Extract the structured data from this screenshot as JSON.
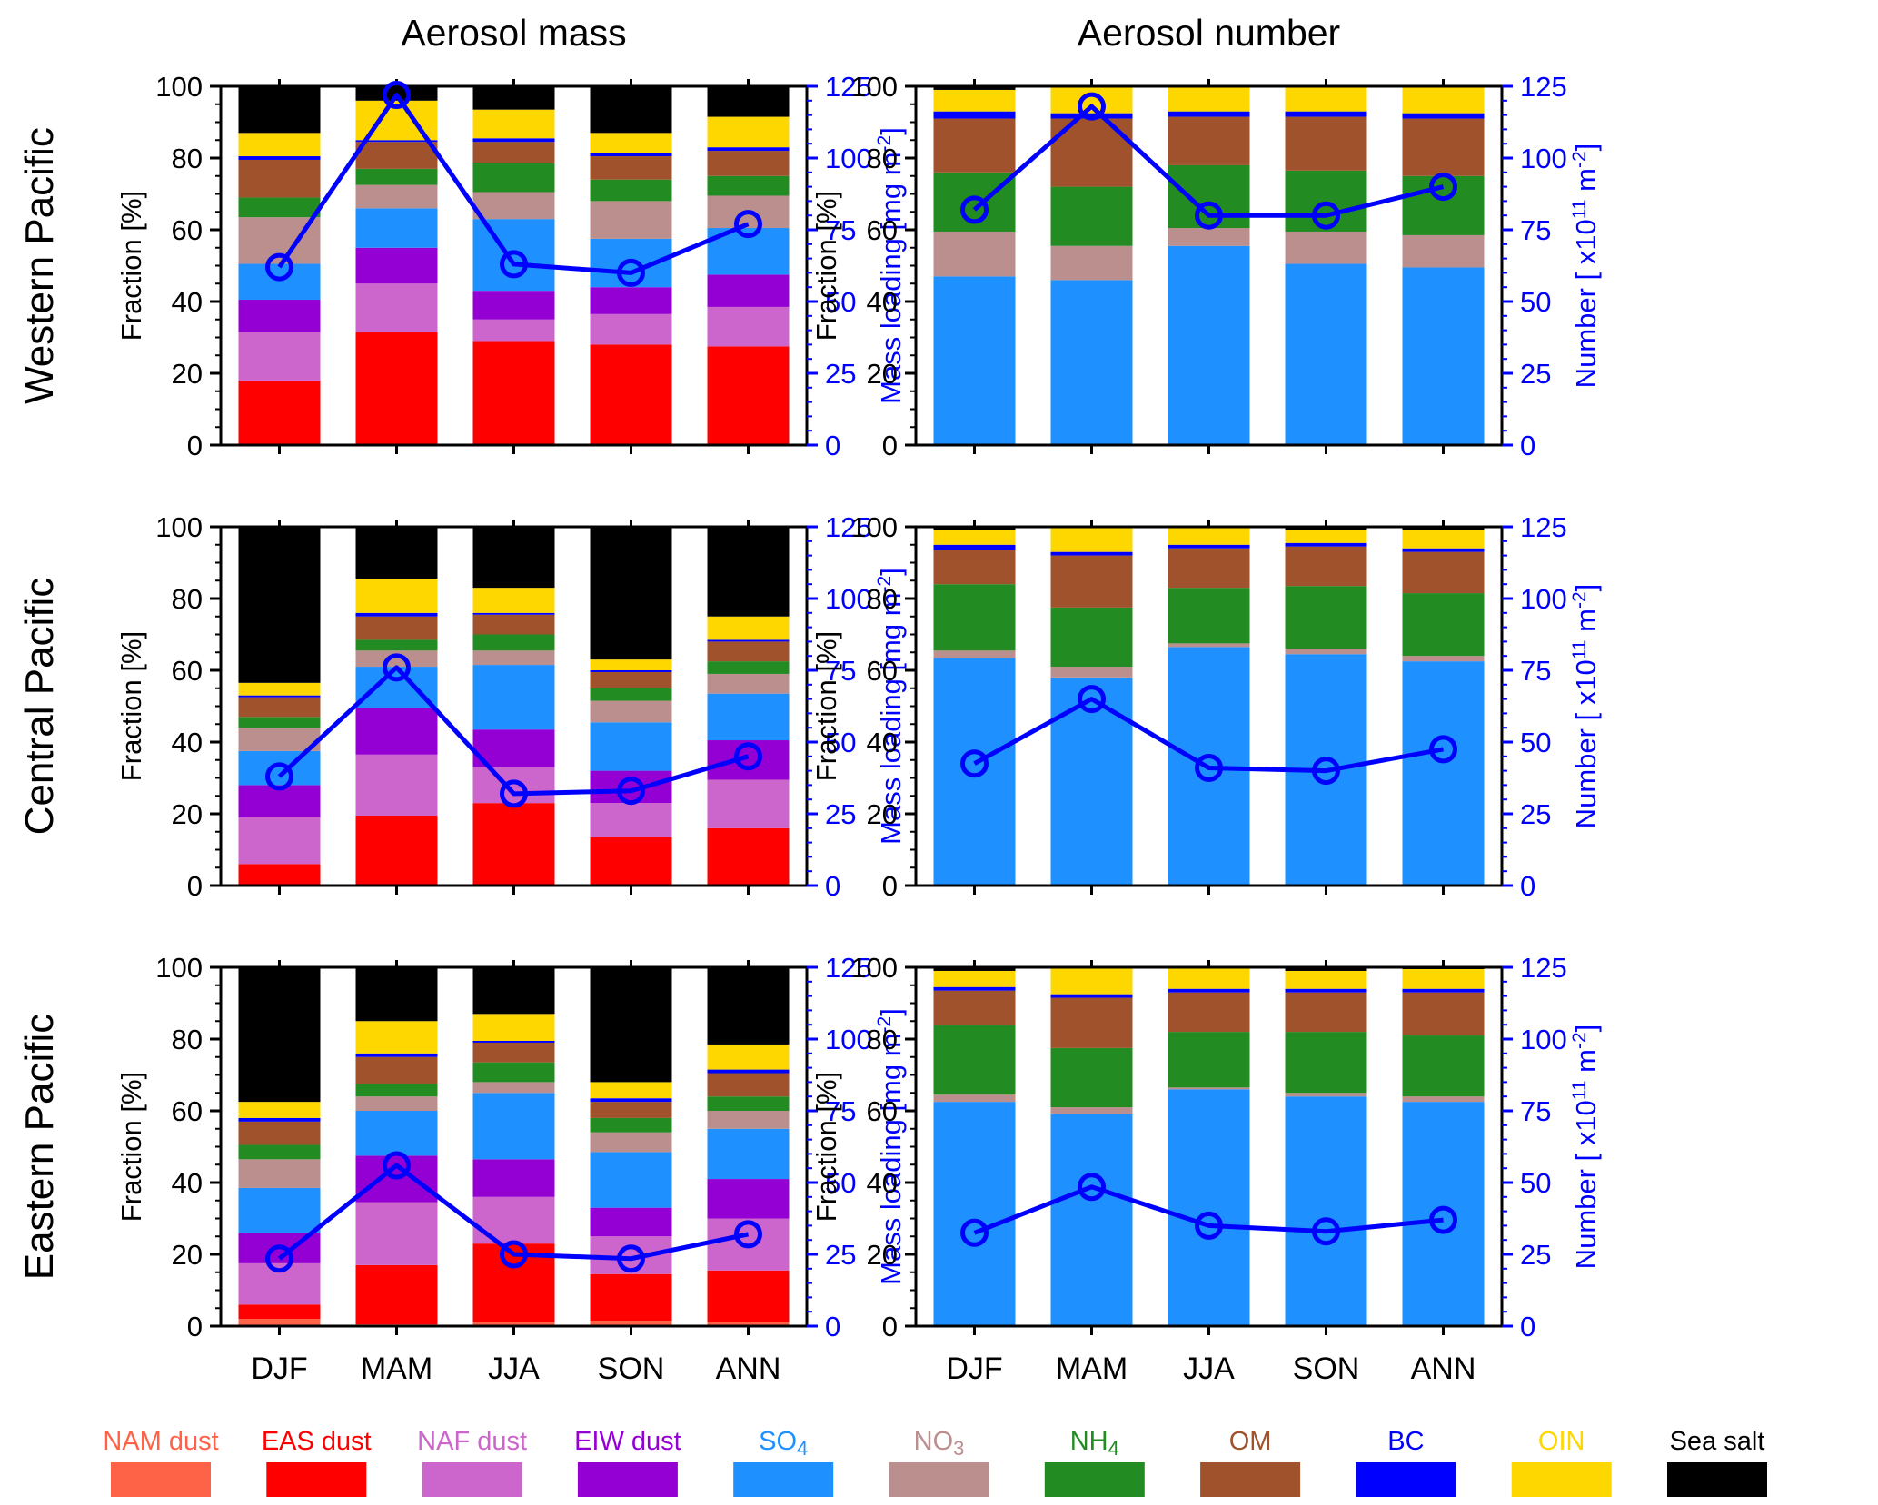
{
  "column_titles": [
    "Aerosol mass",
    "Aerosol number"
  ],
  "row_titles": [
    "Western Pacific",
    "Central Pacific",
    "Eastern Pacific"
  ],
  "categories": [
    "DJF",
    "MAM",
    "JJA",
    "SON",
    "ANN"
  ],
  "left_axis": {
    "label": "Fraction [%]",
    "ylim": [
      0,
      100
    ],
    "ticks": [
      "0",
      "20",
      "40",
      "60",
      "80",
      "100"
    ]
  },
  "right_axis_ticks": [
    "0",
    "25",
    "50",
    "75",
    "100",
    "125"
  ],
  "mass_axis_label": {
    "prefix": "Mass loading [mg m",
    "sup": "-2",
    "suffix": "]"
  },
  "number_axis_label": {
    "prefix": "Number [ x10",
    "sup1": "11",
    "middle": " m",
    "sup2": "-2",
    "suffix": "]"
  },
  "legend": [
    {
      "label": "NAM dust",
      "color": "#ff6347"
    },
    {
      "label": "EAS dust",
      "color": "#ff0000"
    },
    {
      "label": "NAF dust",
      "color": "#cc66cc"
    },
    {
      "label": "EIW dust",
      "color": "#9400d3"
    },
    {
      "label": "SO",
      "sub": "4",
      "color": "#1e90ff"
    },
    {
      "label": "NO",
      "sub": "3",
      "color": "#bc8f8f"
    },
    {
      "label": "NH",
      "sub": "4",
      "color": "#228b22"
    },
    {
      "label": "OM",
      "color": "#a0522d"
    },
    {
      "label": "BC",
      "color": "#0000ff"
    },
    {
      "label": "OIN",
      "color": "#ffd700"
    },
    {
      "label": "Sea salt",
      "color": "#000000"
    }
  ],
  "chart_data": [
    {
      "type": "bar",
      "stacked": true,
      "region": "Western Pacific",
      "quantity": "mass",
      "categories": [
        "DJF",
        "MAM",
        "JJA",
        "SON",
        "ANN"
      ],
      "ylim": [
        0,
        100
      ],
      "y2lim": [
        0,
        125
      ],
      "ylabel": "Fraction [%]",
      "y2label": "Mass loading [mg m-2]",
      "series": [
        {
          "name": "NAM dust",
          "values": [
            0,
            0,
            0,
            0,
            0
          ]
        },
        {
          "name": "EAS dust",
          "values": [
            18,
            31.5,
            29,
            28,
            27.5
          ]
        },
        {
          "name": "NAF dust",
          "values": [
            13.5,
            13.5,
            6,
            8.5,
            11
          ]
        },
        {
          "name": "EIW dust",
          "values": [
            9,
            10,
            8,
            7.5,
            9
          ]
        },
        {
          "name": "SO4",
          "values": [
            10,
            11,
            20,
            13.5,
            13
          ]
        },
        {
          "name": "NO3",
          "values": [
            13,
            6.5,
            7.5,
            10.5,
            9
          ]
        },
        {
          "name": "NH4",
          "values": [
            5.5,
            4.5,
            8,
            6,
            5.5
          ]
        },
        {
          "name": "OM",
          "values": [
            10.5,
            7.5,
            6,
            6.5,
            7
          ]
        },
        {
          "name": "BC",
          "values": [
            1,
            0.5,
            1,
            1,
            1
          ]
        },
        {
          "name": "OIN",
          "values": [
            6.5,
            11,
            8,
            5.5,
            8.5
          ]
        },
        {
          "name": "Sea salt",
          "values": [
            13,
            4,
            6.5,
            13,
            8.5
          ]
        }
      ],
      "line": {
        "name": "Mass loading",
        "values": [
          62,
          122,
          63,
          60,
          77
        ]
      }
    },
    {
      "type": "bar",
      "stacked": true,
      "region": "Western Pacific",
      "quantity": "number",
      "categories": [
        "DJF",
        "MAM",
        "JJA",
        "SON",
        "ANN"
      ],
      "ylim": [
        0,
        100
      ],
      "y2lim": [
        0,
        125
      ],
      "ylabel": "Fraction [%]",
      "y2label": "Number [x10^11 m-2]",
      "series": [
        {
          "name": "NAM dust",
          "values": [
            0,
            0,
            0,
            0,
            0
          ]
        },
        {
          "name": "EAS dust",
          "values": [
            0,
            0,
            0,
            0,
            0
          ]
        },
        {
          "name": "NAF dust",
          "values": [
            0,
            0,
            0,
            0,
            0
          ]
        },
        {
          "name": "EIW dust",
          "values": [
            0,
            0,
            0,
            0,
            0
          ]
        },
        {
          "name": "SO4",
          "values": [
            47,
            46,
            55.5,
            50.5,
            49.5
          ]
        },
        {
          "name": "NO3",
          "values": [
            12.5,
            9.5,
            5,
            9,
            9
          ]
        },
        {
          "name": "NH4",
          "values": [
            16.5,
            16.5,
            17.5,
            17,
            16.5
          ]
        },
        {
          "name": "OM",
          "values": [
            15,
            19,
            13.5,
            15,
            16
          ]
        },
        {
          "name": "BC",
          "values": [
            2,
            1.5,
            1.5,
            1.5,
            1.5
          ]
        },
        {
          "name": "OIN",
          "values": [
            6,
            7.5,
            7,
            7,
            7.5
          ]
        },
        {
          "name": "Sea salt",
          "values": [
            1,
            0,
            0,
            0,
            0
          ]
        }
      ],
      "line": {
        "name": "Number",
        "values": [
          82,
          118,
          80,
          80,
          90
        ]
      }
    },
    {
      "type": "bar",
      "stacked": true,
      "region": "Central Pacific",
      "quantity": "mass",
      "categories": [
        "DJF",
        "MAM",
        "JJA",
        "SON",
        "ANN"
      ],
      "ylim": [
        0,
        100
      ],
      "y2lim": [
        0,
        125
      ],
      "ylabel": "Fraction [%]",
      "y2label": "Mass loading [mg m-2]",
      "series": [
        {
          "name": "NAM dust",
          "values": [
            0,
            0,
            0,
            0,
            0
          ]
        },
        {
          "name": "EAS dust",
          "values": [
            6,
            19.5,
            23,
            13.5,
            16
          ]
        },
        {
          "name": "NAF dust",
          "values": [
            13,
            17,
            10,
            9.5,
            13.5
          ]
        },
        {
          "name": "EIW dust",
          "values": [
            9,
            13,
            10.5,
            9,
            11
          ]
        },
        {
          "name": "SO4",
          "values": [
            9.5,
            11.5,
            18,
            13.5,
            13
          ]
        },
        {
          "name": "NO3",
          "values": [
            6.5,
            4.5,
            4,
            6,
            5.5
          ]
        },
        {
          "name": "NH4",
          "values": [
            3,
            3,
            4.5,
            3.5,
            3.5
          ]
        },
        {
          "name": "OM",
          "values": [
            5.5,
            6.5,
            5.5,
            4.5,
            5.5
          ]
        },
        {
          "name": "BC",
          "values": [
            0.5,
            1,
            0.5,
            0.5,
            0.5
          ]
        },
        {
          "name": "OIN",
          "values": [
            3.5,
            9.5,
            7,
            3,
            6.5
          ]
        },
        {
          "name": "Sea salt",
          "values": [
            43.5,
            14.5,
            17,
            37,
            25
          ]
        }
      ],
      "line": {
        "name": "Mass loading",
        "values": [
          38,
          76,
          32,
          33,
          45
        ]
      }
    },
    {
      "type": "bar",
      "stacked": true,
      "region": "Central Pacific",
      "quantity": "number",
      "categories": [
        "DJF",
        "MAM",
        "JJA",
        "SON",
        "ANN"
      ],
      "ylim": [
        0,
        100
      ],
      "y2lim": [
        0,
        125
      ],
      "ylabel": "Fraction [%]",
      "y2label": "Number [x10^11 m-2]",
      "series": [
        {
          "name": "NAM dust",
          "values": [
            0,
            0,
            0,
            0,
            0
          ]
        },
        {
          "name": "EAS dust",
          "values": [
            0,
            0,
            0,
            0,
            0
          ]
        },
        {
          "name": "NAF dust",
          "values": [
            0,
            0,
            0,
            0,
            0
          ]
        },
        {
          "name": "EIW dust",
          "values": [
            0,
            0,
            0,
            0,
            0
          ]
        },
        {
          "name": "SO4",
          "values": [
            63.5,
            58,
            66.5,
            64.5,
            62.5
          ]
        },
        {
          "name": "NO3",
          "values": [
            2,
            3,
            1,
            1.5,
            1.5
          ]
        },
        {
          "name": "NH4",
          "values": [
            18.5,
            16.5,
            15.5,
            17.5,
            17.5
          ]
        },
        {
          "name": "OM",
          "values": [
            9.5,
            14.5,
            11,
            11,
            11.5
          ]
        },
        {
          "name": "BC",
          "values": [
            1.5,
            1,
            1,
            1,
            1
          ]
        },
        {
          "name": "OIN",
          "values": [
            4,
            7,
            5,
            3.5,
            5
          ]
        },
        {
          "name": "Sea salt",
          "values": [
            1,
            0,
            0,
            1,
            1
          ]
        }
      ],
      "line": {
        "name": "Number",
        "values": [
          42.5,
          65,
          41,
          40,
          47.5
        ]
      }
    },
    {
      "type": "bar",
      "stacked": true,
      "region": "Eastern Pacific",
      "quantity": "mass",
      "categories": [
        "DJF",
        "MAM",
        "JJA",
        "SON",
        "ANN"
      ],
      "ylim": [
        0,
        100
      ],
      "y2lim": [
        0,
        125
      ],
      "ylabel": "Fraction [%]",
      "y2label": "Mass loading [mg m-2]",
      "series": [
        {
          "name": "NAM dust",
          "values": [
            2,
            0.5,
            1,
            1.5,
            1
          ]
        },
        {
          "name": "EAS dust",
          "values": [
            4,
            16.5,
            22,
            13,
            14.5
          ]
        },
        {
          "name": "NAF dust",
          "values": [
            11.5,
            17.5,
            13,
            10.5,
            14.5
          ]
        },
        {
          "name": "EIW dust",
          "values": [
            8.5,
            13,
            10.5,
            8,
            11
          ]
        },
        {
          "name": "SO4",
          "values": [
            12.5,
            12.5,
            18.5,
            15.5,
            14
          ]
        },
        {
          "name": "NO3",
          "values": [
            8,
            4,
            3,
            5.5,
            5
          ]
        },
        {
          "name": "NH4",
          "values": [
            4,
            3.5,
            5.5,
            4,
            4
          ]
        },
        {
          "name": "OM",
          "values": [
            6.5,
            7.5,
            5.5,
            4.5,
            6.5
          ]
        },
        {
          "name": "BC",
          "values": [
            1,
            1,
            0.5,
            1,
            1
          ]
        },
        {
          "name": "OIN",
          "values": [
            4.5,
            9,
            7.5,
            4.5,
            7
          ]
        },
        {
          "name": "Sea salt",
          "values": [
            37.5,
            15,
            13,
            32,
            21.5
          ]
        }
      ],
      "line": {
        "name": "Mass loading",
        "values": [
          23.5,
          56,
          25,
          23.5,
          32
        ]
      }
    },
    {
      "type": "bar",
      "stacked": true,
      "region": "Eastern Pacific",
      "quantity": "number",
      "categories": [
        "DJF",
        "MAM",
        "JJA",
        "SON",
        "ANN"
      ],
      "ylim": [
        0,
        100
      ],
      "y2lim": [
        0,
        125
      ],
      "ylabel": "Fraction [%]",
      "y2label": "Number [x10^11 m-2]",
      "series": [
        {
          "name": "NAM dust",
          "values": [
            0,
            0,
            0,
            0,
            0
          ]
        },
        {
          "name": "EAS dust",
          "values": [
            0,
            0,
            0,
            0,
            0
          ]
        },
        {
          "name": "NAF dust",
          "values": [
            0,
            0,
            0,
            0,
            0
          ]
        },
        {
          "name": "EIW dust",
          "values": [
            0,
            0,
            0,
            0,
            0
          ]
        },
        {
          "name": "SO4",
          "values": [
            62.5,
            59,
            66,
            64,
            62.5
          ]
        },
        {
          "name": "NO3",
          "values": [
            2,
            2,
            0.5,
            1,
            1.5
          ]
        },
        {
          "name": "NH4",
          "values": [
            19.5,
            16.5,
            15.5,
            17,
            17
          ]
        },
        {
          "name": "OM",
          "values": [
            9.5,
            14,
            11,
            11,
            12
          ]
        },
        {
          "name": "BC",
          "values": [
            1,
            1,
            1,
            1,
            1
          ]
        },
        {
          "name": "OIN",
          "values": [
            4.5,
            7.5,
            6,
            5,
            5.5
          ]
        },
        {
          "name": "Sea salt",
          "values": [
            1,
            0,
            0,
            1,
            0.5
          ]
        }
      ],
      "line": {
        "name": "Number",
        "values": [
          32.5,
          48.5,
          35,
          33,
          37
        ]
      }
    }
  ]
}
